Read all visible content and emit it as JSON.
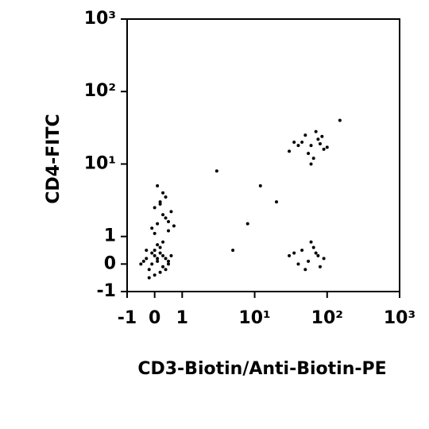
{
  "chart_data": {
    "type": "scatter",
    "x_label": "CD3-Biotin/Anti-Biotin-PE",
    "y_label": "CD4-FITC",
    "xscale": "biexponential",
    "yscale": "biexponential",
    "color": "#000000",
    "xlim": [
      -1,
      1000
    ],
    "ylim": [
      -1,
      1000
    ],
    "xticks": [
      -1,
      0,
      1,
      {
        "value": 10,
        "label": "10¹"
      },
      {
        "value": 100,
        "label": "10²"
      },
      {
        "value": 1000,
        "label": "10³"
      }
    ],
    "yticks": [
      -1,
      0,
      1,
      {
        "value": 10,
        "label": "10¹"
      },
      {
        "value": 100,
        "label": "10²"
      },
      {
        "value": 1000,
        "label": "10³"
      }
    ],
    "x": [
      -0.3,
      -0.1,
      0.1,
      0.3,
      0.5,
      -0.2,
      0,
      0.2,
      0.4,
      -0.4,
      0.1,
      0.3,
      -0.1,
      0.2,
      0.6,
      0,
      -0.3,
      0.4,
      0.1,
      -0.2,
      0.2,
      0.5,
      -0.5,
      0.3,
      0,
      0.1,
      0.3,
      0.5,
      0.2,
      0,
      0.4,
      0.6,
      -0.1,
      0.3,
      0.1,
      0.5,
      0.2,
      0,
      0.7,
      0.4,
      30,
      45,
      60,
      75,
      90,
      50,
      65,
      40,
      80,
      55,
      70,
      100,
      35,
      60,
      85,
      30,
      45,
      55,
      70,
      90,
      50,
      65,
      40,
      60,
      80,
      35,
      75,
      5,
      12,
      20,
      3,
      150,
      8
    ],
    "values": [
      0.2,
      0.4,
      0.1,
      0.3,
      0.0,
      -0.2,
      0.5,
      -0.3,
      0.2,
      0.1,
      0.7,
      -0.1,
      0.0,
      0.4,
      0.3,
      -0.4,
      0.5,
      -0.2,
      0.2,
      -0.5,
      0.6,
      0.1,
      0.0,
      0.8,
      0.3,
      1.5,
      2,
      1.2,
      3,
      2.5,
      1.8,
      2.2,
      1.3,
      4,
      5,
      1.6,
      2.8,
      1.1,
      1.4,
      3.5,
      15,
      20,
      18,
      22,
      16,
      25,
      12,
      18,
      19,
      14,
      28,
      17,
      20,
      10,
      24,
      0.3,
      0.5,
      0.1,
      0.4,
      0.2,
      -0.2,
      0.6,
      0.0,
      0.8,
      -0.1,
      0.4,
      0.3,
      0.5,
      5,
      3,
      8,
      40,
      1.5
    ]
  }
}
